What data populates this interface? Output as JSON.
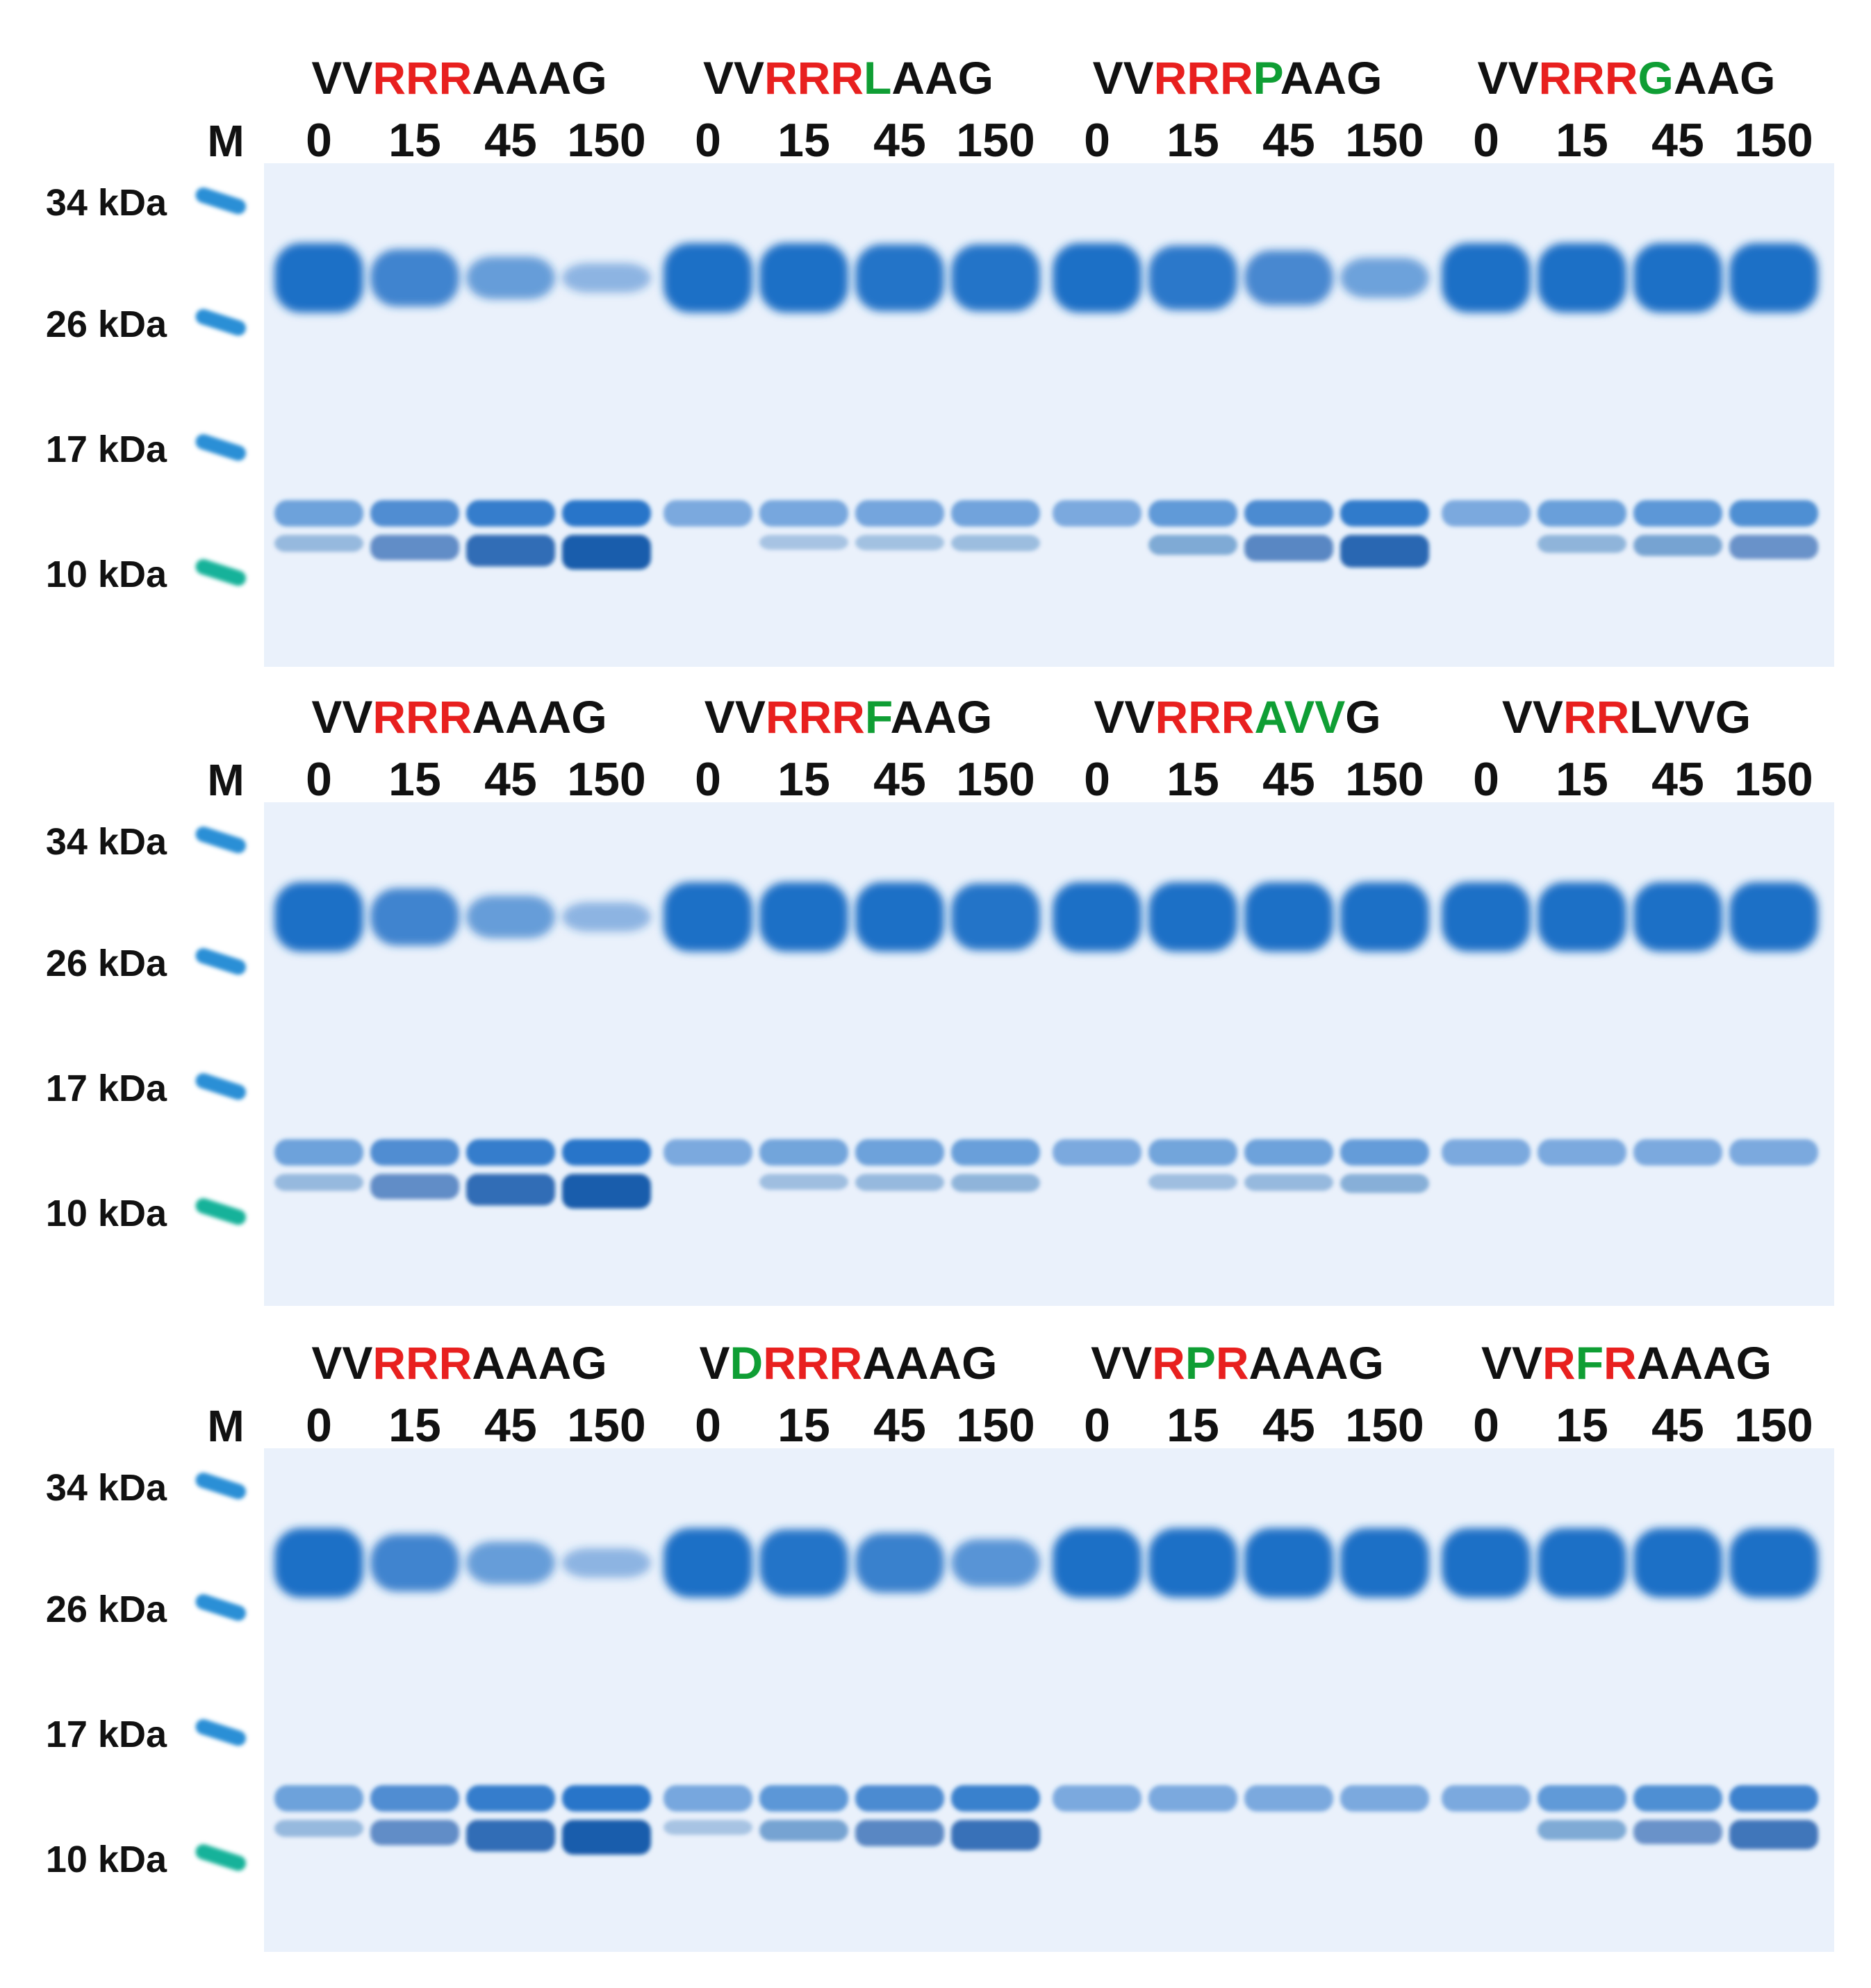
{
  "colors": {
    "background": "#ffffff",
    "gel": "#eaf1fb",
    "band": "#1e6fc6",
    "band_dark": "#0c54a8",
    "ladder": "#2a8fd6",
    "ladder_low": "#19b29a",
    "text": "#111111",
    "red": "#e8201f",
    "green": "#0f9e34"
  },
  "marker_label": "M",
  "mw_labels": [
    "34 kDa",
    "26 kDa",
    "17 kDa",
    "10 kDa"
  ],
  "time_points": [
    "0",
    "15",
    "45",
    "150"
  ],
  "panels": [
    {
      "groups": [
        {
          "seq": [
            [
              "VV",
              "k"
            ],
            [
              "RRR",
              "r"
            ],
            [
              "AAAG",
              "k"
            ]
          ],
          "intensity": [
            1,
            0.75,
            0.45,
            0.18
          ],
          "cleaved": [
            0.15,
            0.55,
            0.85,
            1
          ]
        },
        {
          "seq": [
            [
              "VV",
              "k"
            ],
            [
              "RRR",
              "r"
            ],
            [
              "L",
              "g"
            ],
            [
              "AAG",
              "k"
            ]
          ],
          "intensity": [
            1,
            1,
            0.95,
            0.95
          ],
          "cleaved": [
            0,
            0.05,
            0.08,
            0.12
          ]
        },
        {
          "seq": [
            [
              "VV",
              "k"
            ],
            [
              "RRR",
              "r"
            ],
            [
              "P",
              "g"
            ],
            [
              "AAG",
              "k"
            ]
          ],
          "intensity": [
            1,
            0.9,
            0.7,
            0.4
          ],
          "cleaved": [
            0,
            0.3,
            0.6,
            0.9
          ]
        },
        {
          "seq": [
            [
              "VV",
              "k"
            ],
            [
              "RRR",
              "r"
            ],
            [
              "G",
              "g"
            ],
            [
              "AAG",
              "k"
            ]
          ],
          "intensity": [
            1,
            1,
            1,
            1
          ],
          "cleaved": [
            0,
            0.2,
            0.35,
            0.5
          ]
        }
      ]
    },
    {
      "groups": [
        {
          "seq": [
            [
              "VV",
              "k"
            ],
            [
              "RRR",
              "r"
            ],
            [
              "AAAG",
              "k"
            ]
          ],
          "intensity": [
            1,
            0.75,
            0.45,
            0.18
          ],
          "cleaved": [
            0.15,
            0.55,
            0.85,
            1
          ]
        },
        {
          "seq": [
            [
              "VV",
              "k"
            ],
            [
              "RRR",
              "r"
            ],
            [
              "F",
              "g"
            ],
            [
              "AAG",
              "k"
            ]
          ],
          "intensity": [
            1,
            1,
            1,
            0.95
          ],
          "cleaved": [
            0,
            0.1,
            0.15,
            0.2
          ]
        },
        {
          "seq": [
            [
              "VV",
              "k"
            ],
            [
              "RRR",
              "r"
            ],
            [
              "AVV",
              "g"
            ],
            [
              "G",
              "k"
            ]
          ],
          "intensity": [
            1,
            1,
            1,
            1
          ],
          "cleaved": [
            0,
            0.1,
            0.15,
            0.25
          ]
        },
        {
          "seq": [
            [
              "VV",
              "k"
            ],
            [
              "RR",
              "r"
            ],
            [
              "LVVG",
              "k"
            ]
          ],
          "intensity": [
            1,
            1,
            1,
            1
          ],
          "cleaved": [
            0,
            0,
            0,
            0
          ]
        }
      ]
    },
    {
      "groups": [
        {
          "seq": [
            [
              "VV",
              "k"
            ],
            [
              "RRR",
              "r"
            ],
            [
              "AAAG",
              "k"
            ]
          ],
          "intensity": [
            1,
            0.75,
            0.45,
            0.18
          ],
          "cleaved": [
            0.15,
            0.55,
            0.85,
            1
          ]
        },
        {
          "seq": [
            [
              "V",
              "k"
            ],
            [
              "D",
              "g"
            ],
            [
              "RRR",
              "r"
            ],
            [
              "AAAG",
              "k"
            ]
          ],
          "intensity": [
            1,
            0.95,
            0.8,
            0.55
          ],
          "cleaved": [
            0.05,
            0.35,
            0.6,
            0.8
          ]
        },
        {
          "seq": [
            [
              "VV",
              "k"
            ],
            [
              "R",
              "r"
            ],
            [
              "P",
              "g"
            ],
            [
              "R",
              "r"
            ],
            [
              "AAAG",
              "k"
            ]
          ],
          "intensity": [
            1,
            1,
            1,
            1
          ],
          "cleaved": [
            0,
            0,
            0,
            0
          ]
        },
        {
          "seq": [
            [
              "VV",
              "k"
            ],
            [
              "R",
              "r"
            ],
            [
              "F",
              "g"
            ],
            [
              "R",
              "r"
            ],
            [
              "AAAG",
              "k"
            ]
          ],
          "intensity": [
            1,
            1,
            1,
            1
          ],
          "cleaved": [
            0,
            0.3,
            0.5,
            0.75
          ]
        }
      ]
    }
  ]
}
